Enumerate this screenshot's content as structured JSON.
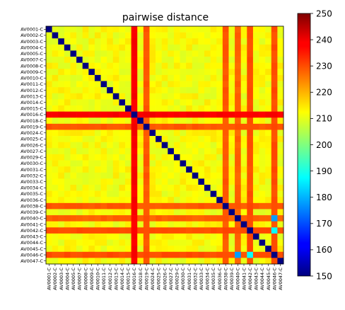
{
  "chart_data": {
    "type": "heatmap",
    "title": "pairwise distance",
    "labels": [
      "AV0001-C",
      "AV0002-C",
      "AV0003-C",
      "AV0004-C",
      "AV0005-C",
      "AV0007-C",
      "AV0008-C",
      "AV0009-C",
      "AV0010-C",
      "AV0011-C",
      "AV0012-C",
      "AV0013-C",
      "AV0014-C",
      "AV0015-C",
      "AV0016-C",
      "AV0018-C",
      "AV0019-C",
      "AV0024-C",
      "AV0025-C",
      "AV0026-C",
      "AV0027-C",
      "AV0029-C",
      "AV0030-C",
      "AV0031-C",
      "AV0032-C",
      "AV0033-C",
      "AV0034-C",
      "AV0035-C",
      "AV0036-C",
      "AV0038-C",
      "AV0039-C",
      "AV0040-C",
      "AV0041-C",
      "AV0042-C",
      "AV0043-C",
      "AV0044-C",
      "AV0045-C",
      "AV0046-C",
      "AV0047-C"
    ],
    "diagonal_value": 150,
    "base_value": 212,
    "group_values": {
      "AV0016-C": 238,
      "AV0019-C": 229,
      "AV0038-C": 229,
      "AV0040-C": 228,
      "AV0042-C": 230,
      "AV0046-C": 230
    },
    "special_cells": [
      {
        "row": "AV0016-C",
        "col": "AV0018-C",
        "value": 238
      },
      {
        "row": "AV0018-C",
        "col": "AV0018-C",
        "value": 150
      },
      {
        "row": "AV0040-C",
        "col": "AV0046-C",
        "value": 178
      },
      {
        "row": "AV0042-C",
        "col": "AV0046-C",
        "value": 188
      },
      {
        "row": "AV0042-C",
        "col": "AV0040-C",
        "value": 230
      },
      {
        "row": "AV0041-C",
        "col": "AV0042-C",
        "value": 230
      }
    ],
    "colorbar": {
      "min": 150,
      "max": 250,
      "ticks": [
        150,
        160,
        170,
        180,
        190,
        200,
        210,
        220,
        230,
        240,
        250
      ],
      "colormap": "jet"
    }
  }
}
